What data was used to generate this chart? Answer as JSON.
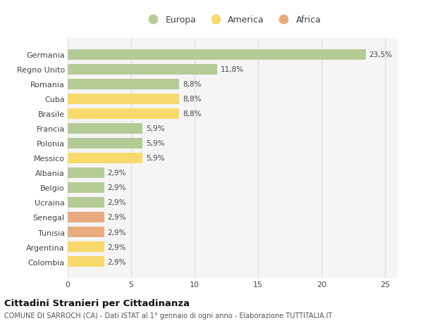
{
  "categories": [
    "Germania",
    "Regno Unito",
    "Romania",
    "Cuba",
    "Brasile",
    "Francia",
    "Polonia",
    "Messico",
    "Albania",
    "Belgio",
    "Ucraina",
    "Senegal",
    "Tunisia",
    "Argentina",
    "Colombia"
  ],
  "values": [
    23.5,
    11.8,
    8.8,
    8.8,
    8.8,
    5.9,
    5.9,
    5.9,
    2.9,
    2.9,
    2.9,
    2.9,
    2.9,
    2.9,
    2.9
  ],
  "labels": [
    "23,5%",
    "11,8%",
    "8,8%",
    "8,8%",
    "8,8%",
    "5,9%",
    "5,9%",
    "5,9%",
    "2,9%",
    "2,9%",
    "2,9%",
    "2,9%",
    "2,9%",
    "2,9%",
    "2,9%"
  ],
  "continent": [
    "Europa",
    "Europa",
    "Europa",
    "America",
    "America",
    "Europa",
    "Europa",
    "America",
    "Europa",
    "Europa",
    "Europa",
    "Africa",
    "Africa",
    "America",
    "America"
  ],
  "colors": {
    "Europa": "#b5cb96",
    "America": "#f8d96b",
    "Africa": "#e8aa7e"
  },
  "title": "Cittadini Stranieri per Cittadinanza",
  "subtitle": "COMUNE DI SARROCH (CA) - Dati ISTAT al 1° gennaio di ogni anno - Elaborazione TUTTITALIA.IT",
  "xlim": [
    0,
    26
  ],
  "xticks": [
    0,
    5,
    10,
    15,
    20,
    25
  ],
  "background_color": "#ffffff",
  "plot_bg_color": "#f5f5f5",
  "grid_color": "#dddddd",
  "bar_height": 0.72
}
